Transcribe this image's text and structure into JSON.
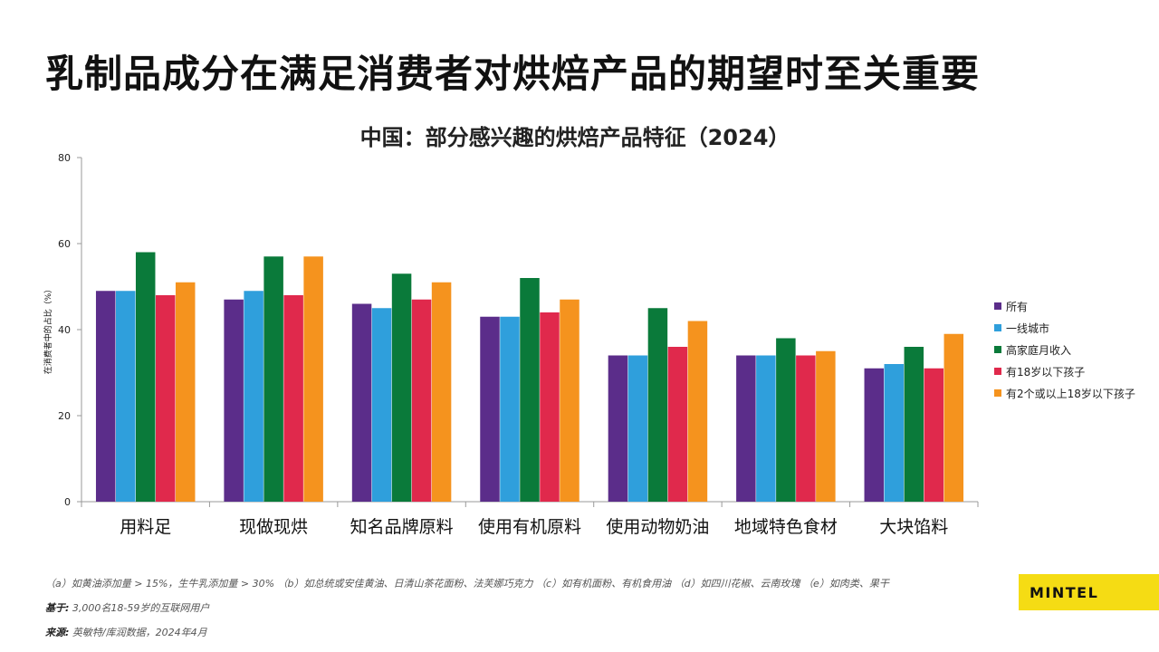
{
  "slide": {
    "title": "乳制品成分在满足消费者对烘焙产品的期望时至关重要"
  },
  "chart_data": {
    "type": "bar",
    "title": "中国：部分感兴趣的烘焙产品特征（2024）",
    "ylabel": "在消费者中的占比（%）",
    "xlabel": "",
    "ylim": [
      0,
      80
    ],
    "yticks": [
      0,
      20,
      40,
      60,
      80
    ],
    "grid": false,
    "legend_position": "right",
    "categories": [
      "用料足",
      "现做现烘",
      "知名品牌原料",
      "使用有机原料",
      "使用动物奶油",
      "地域特色食材",
      "大块馅料"
    ],
    "series": [
      {
        "name": "所有",
        "color": "#5b2d8a",
        "values": [
          49,
          47,
          46,
          43,
          34,
          34,
          31
        ]
      },
      {
        "name": "一线城市",
        "color": "#2f9fdc",
        "values": [
          49,
          49,
          45,
          43,
          34,
          34,
          32
        ]
      },
      {
        "name": "高家庭月收入",
        "color": "#0a7a3a",
        "values": [
          58,
          57,
          53,
          52,
          45,
          38,
          36
        ]
      },
      {
        "name": "有18岁以下孩子",
        "color": "#e0294c",
        "values": [
          48,
          48,
          47,
          44,
          36,
          34,
          31
        ]
      },
      {
        "name": "有2个或以上18岁以下孩子",
        "color": "#f5931e",
        "values": [
          51,
          57,
          51,
          47,
          42,
          35,
          39
        ]
      }
    ]
  },
  "footnotes": {
    "notes": "（a）如黄油添加量 > 15%，生牛乳添加量 > 30%  （b）如总统或安佳黄油、日清山茶花面粉、法芙娜巧克力  （c）如有机面粉、有机食用油  （d）如四川花椒、云南玫瑰  （e）如肉类、果干",
    "base_label": "基于:",
    "base_text": " 3,000名18-59岁的互联网用户",
    "source_label": "来源:",
    "source_text": " 英敏特/库润数据，2024年4月"
  },
  "brand": {
    "logo_text": "MINTEL",
    "logo_color": "#f5dc14"
  }
}
